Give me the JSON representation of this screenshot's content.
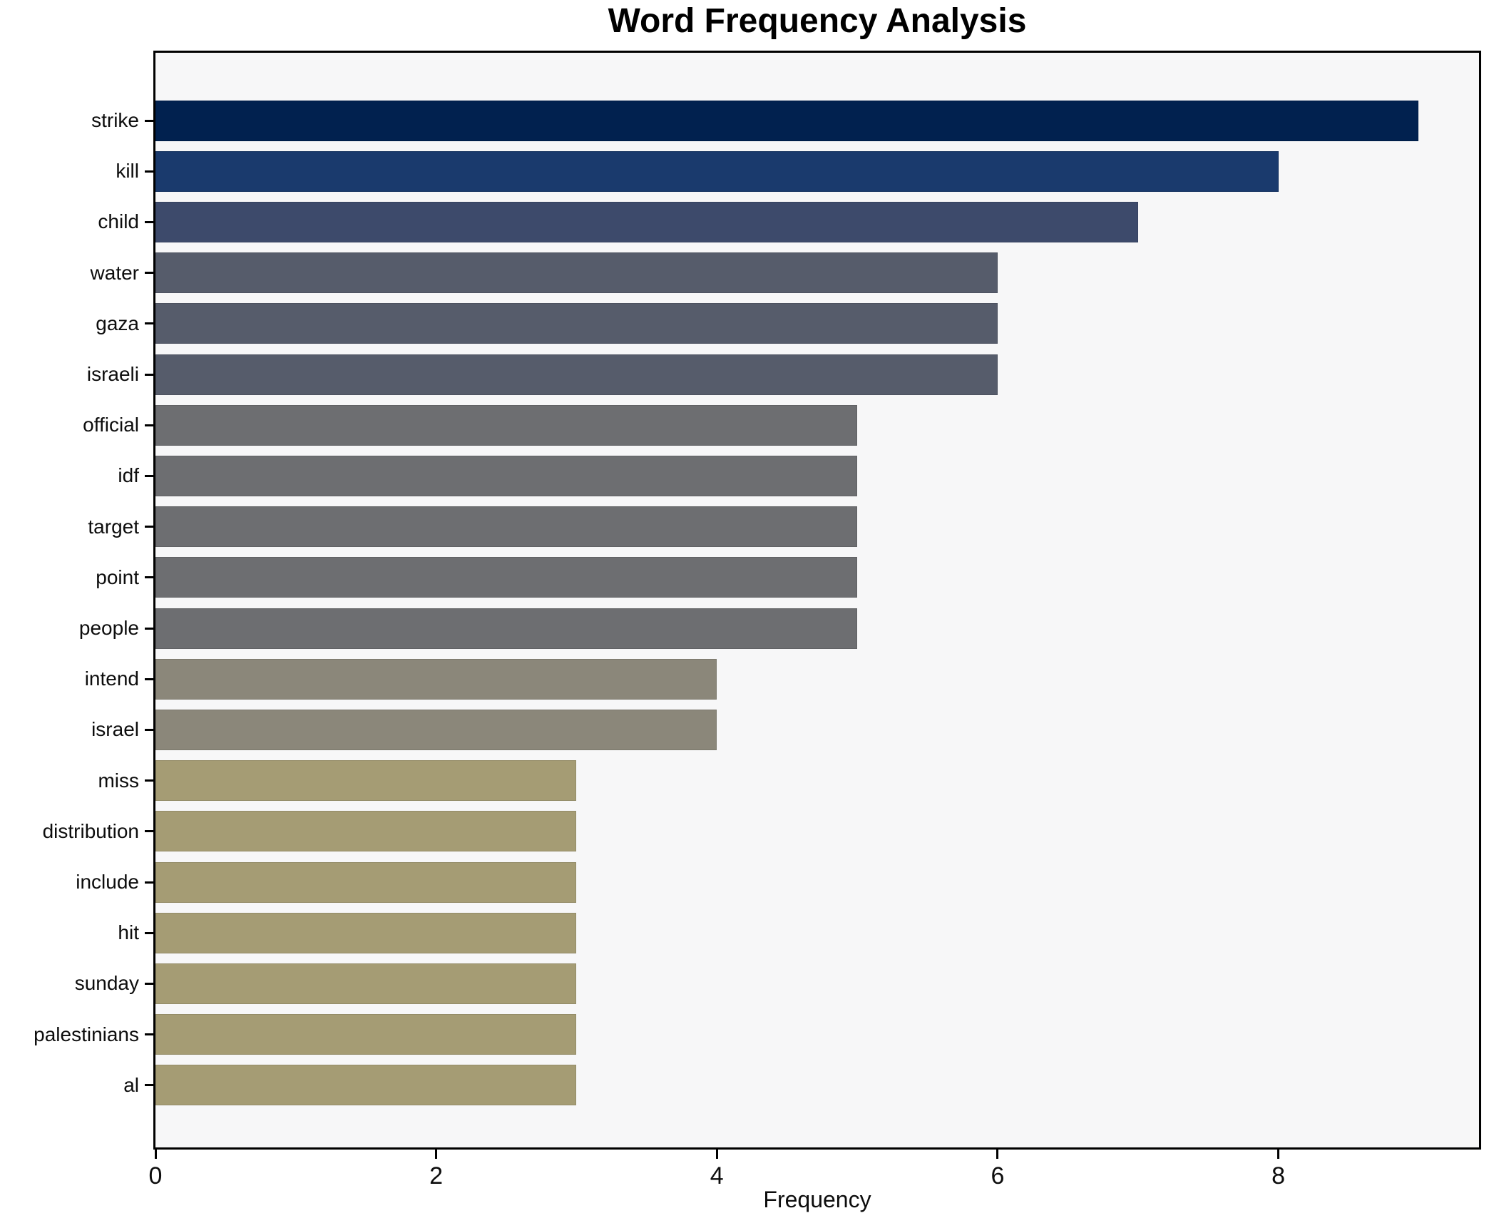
{
  "chart_data": {
    "type": "bar",
    "orientation": "horizontal",
    "title": "Word Frequency Analysis",
    "xlabel": "Frequency",
    "ylabel": "",
    "xlim": [
      0,
      9.43
    ],
    "xticks": [
      0,
      2,
      4,
      6,
      8
    ],
    "grid": false,
    "legend_position": "none",
    "plot_background": "#f7f7f8",
    "figure_background": "#ffffff",
    "spine_color": "#000000",
    "categories": [
      "strike",
      "kill",
      "child",
      "water",
      "gaza",
      "israeli",
      "official",
      "idf",
      "target",
      "point",
      "people",
      "intend",
      "israel",
      "miss",
      "distribution",
      "include",
      "hit",
      "sunday",
      "palestinians",
      "al"
    ],
    "values": [
      9,
      8,
      7,
      6,
      6,
      6,
      5,
      5,
      5,
      5,
      5,
      4,
      4,
      3,
      3,
      3,
      3,
      3,
      3,
      3
    ],
    "colors_by_value": {
      "9": "#01214f",
      "8": "#1a3a6d",
      "7": "#3d4a6b",
      "6": "#565c6b",
      "5": "#6d6e71",
      "4": "#8b877a",
      "3": "#a59c74"
    }
  }
}
